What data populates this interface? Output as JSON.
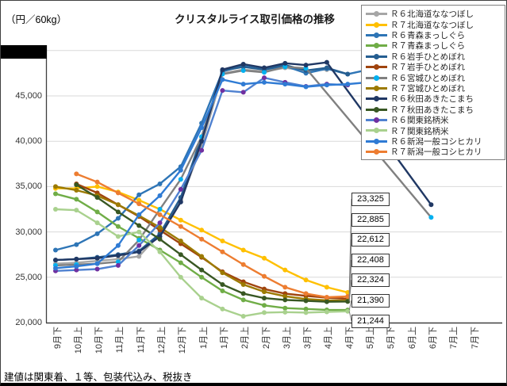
{
  "header": {
    "unit_label": "（円／60kg）",
    "title": "クリスタルライス取引価格の推移"
  },
  "footnote": "建値は関東着、１等、包装代込み、税抜き",
  "chart_data": {
    "type": "line",
    "title": "クリスタルライス取引価格の推移",
    "y_unit": "（円／60kg）",
    "ylim": [
      20000,
      50000
    ],
    "y_tick_step": 5000,
    "y_ticks_labeled": [
      20000,
      25000,
      30000,
      35000,
      40000,
      45000
    ],
    "grid": true,
    "legend_position": "upper-right-overlay",
    "categories": [
      "9月下",
      "10月上",
      "10月下",
      "11月上",
      "11月下",
      "12月上",
      "12月下",
      "1月上",
      "1月下",
      "2月上",
      "2月下",
      "3月上",
      "3月下",
      "4月上",
      "4月下",
      "5月上",
      "5月下",
      "6月上",
      "6月下",
      "7月上",
      "7月下"
    ],
    "series": [
      {
        "name": "Ｒ６北海道ななつぼし",
        "color": "#a6a6a6",
        "marker": "#a6a6a6",
        "values": [
          26500,
          26600,
          26800,
          27000,
          27300,
          29800,
          33500,
          39500,
          47500,
          47900,
          47700,
          48100,
          47800,
          47900,
          null,
          null,
          null,
          null,
          null,
          null,
          null
        ]
      },
      {
        "name": "Ｒ７北海道ななつぼし",
        "color": "#ffc000",
        "marker": "#ffc000",
        "values": [
          34800,
          34800,
          35000,
          34400,
          33500,
          32500,
          31300,
          30200,
          29000,
          28000,
          27100,
          25800,
          24700,
          23900,
          23325,
          null,
          null,
          null,
          null,
          null,
          null
        ]
      },
      {
        "name": "Ｒ６青森まっしぐら",
        "color": "#2e75b6",
        "marker": "#2e75b6",
        "values": [
          28000,
          28600,
          29800,
          31500,
          34100,
          35300,
          37200,
          42000,
          47700,
          48300,
          47900,
          48300,
          47500,
          48000,
          47400,
          47900,
          null,
          null,
          null,
          null,
          null
        ]
      },
      {
        "name": "Ｒ７青森まっしぐら",
        "color": "#70ad47",
        "marker": "#70ad47",
        "values": [
          34200,
          33600,
          32200,
          30600,
          29300,
          28000,
          26600,
          25000,
          23500,
          22500,
          21900,
          21600,
          21500,
          21400,
          21390,
          null,
          null,
          null,
          null,
          null,
          null
        ]
      },
      {
        "name": "Ｒ６岩手ひとめぼれ",
        "color": "#255e91",
        "marker": "#255e91",
        "values": [
          26900,
          27000,
          27200,
          27500,
          27900,
          29800,
          33800,
          40500,
          47800,
          48200,
          47900,
          48400,
          47800,
          48100,
          47400,
          null,
          null,
          null,
          null,
          null,
          null
        ]
      },
      {
        "name": "Ｒ７岩手ひとめぼれ",
        "color": "#a0440e",
        "marker": "#a0440e",
        "values": [
          null,
          35300,
          34300,
          33000,
          31700,
          30200,
          28700,
          27200,
          25600,
          24500,
          23700,
          23200,
          22950,
          22750,
          22612,
          null,
          null,
          null,
          null,
          null,
          null
        ]
      },
      {
        "name": "Ｒ６宮城ひとめぼれ",
        "color": "#808080",
        "marker": "#00b0f0",
        "values": [
          26300,
          26400,
          26500,
          26700,
          29100,
          32500,
          35800,
          40500,
          47400,
          47800,
          47600,
          48200,
          48050,
          null,
          null,
          null,
          null,
          null,
          31600,
          null,
          null
        ]
      },
      {
        "name": "Ｒ７宮城ひとめぼれ",
        "color": "#9c7a00",
        "marker": "#9c7a00",
        "values": [
          35000,
          34600,
          34000,
          33000,
          31800,
          30500,
          29000,
          27300,
          25500,
          24200,
          23400,
          22900,
          22600,
          22450,
          22408,
          null,
          null,
          null,
          null,
          null,
          null
        ]
      },
      {
        "name": "Ｒ６秋田あきたこまち",
        "color": "#203864",
        "marker": "#203864",
        "values": [
          26900,
          27000,
          27100,
          27400,
          27800,
          29500,
          33300,
          40000,
          47900,
          48500,
          48100,
          48600,
          48400,
          48700,
          null,
          null,
          null,
          null,
          33000,
          null,
          null
        ]
      },
      {
        "name": "Ｒ７秋田あきたこまち",
        "color": "#385723",
        "marker": "#385723",
        "values": [
          null,
          35200,
          33800,
          32200,
          30700,
          29200,
          27500,
          25800,
          24200,
          23200,
          22700,
          22500,
          22400,
          22300,
          22324,
          null,
          null,
          null,
          null,
          null,
          null
        ]
      },
      {
        "name": "Ｒ６関東銘柄米",
        "color": "#4f81d0",
        "marker": "#7030a0",
        "values": [
          25700,
          25800,
          25900,
          26300,
          28500,
          31000,
          34700,
          39000,
          45600,
          45400,
          47000,
          46500,
          46050,
          46300,
          46200,
          null,
          null,
          null,
          null,
          null,
          null
        ]
      },
      {
        "name": "Ｒ７関東銘柄米",
        "color": "#a9d18e",
        "marker": "#a9d18e",
        "values": [
          32500,
          32400,
          31000,
          29500,
          30000,
          27800,
          25000,
          22700,
          21500,
          20700,
          21100,
          21150,
          21100,
          21180,
          21244,
          null,
          null,
          null,
          null,
          null,
          null
        ]
      },
      {
        "name": "Ｒ６新潟一般コシヒカリ",
        "color": "#2f7bd4",
        "marker": "#2f7bd4",
        "values": [
          26000,
          26200,
          26500,
          28500,
          31900,
          34000,
          36800,
          41500,
          46800,
          46300,
          46500,
          46300,
          46000,
          46200,
          46300,
          46500,
          null,
          null,
          null,
          null,
          null
        ]
      },
      {
        "name": "Ｒ７新潟一般コシヒカリ",
        "color": "#ed7d31",
        "marker": "#ed7d31",
        "values": [
          null,
          36400,
          35500,
          34300,
          33100,
          31900,
          30600,
          29200,
          27800,
          26400,
          25100,
          23900,
          23200,
          22800,
          22885,
          null,
          null,
          null,
          null,
          null,
          null
        ]
      }
    ],
    "callouts": [
      {
        "label": "23,325",
        "value": 23325
      },
      {
        "label": "22,885",
        "value": 22885
      },
      {
        "label": "22,612",
        "value": 22612
      },
      {
        "label": "22,408",
        "value": 22408
      },
      {
        "label": "22,324",
        "value": 22324
      },
      {
        "label": "21,390",
        "value": 21390
      },
      {
        "label": "21,244",
        "value": 21244
      }
    ]
  }
}
